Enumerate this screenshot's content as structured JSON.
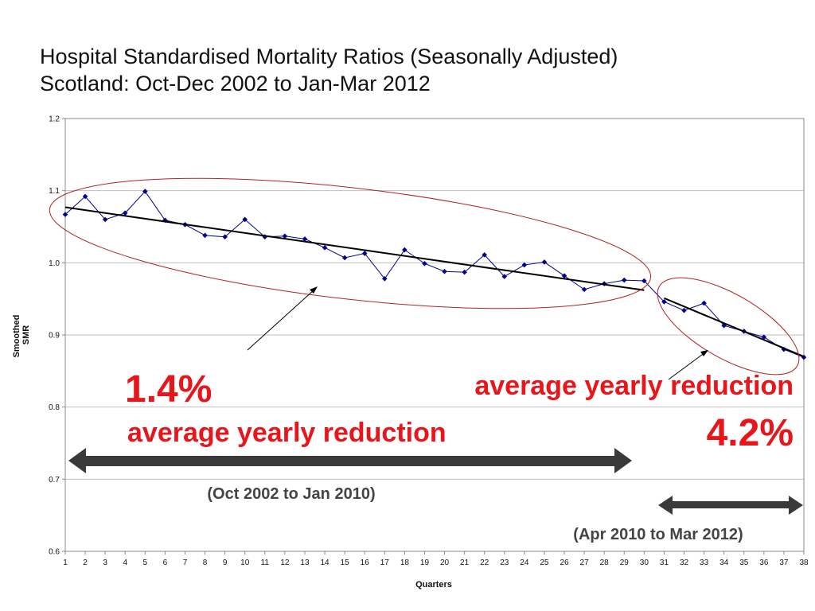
{
  "title": {
    "line1": "Hospital Standardised Mortality Ratios (Seasonally Adjusted)",
    "line2": "Scotland: Oct-Dec 2002 to Jan-Mar 2012"
  },
  "chart_data": {
    "type": "line",
    "title": "Hospital Standardised Mortality Ratios (Seasonally Adjusted) Scotland: Oct-Dec 2002 to Jan-Mar 2012",
    "xlabel": "Quarters",
    "ylabel_lines": [
      "Smoothed",
      "SMR"
    ],
    "x": [
      1,
      2,
      3,
      4,
      5,
      6,
      7,
      8,
      9,
      10,
      11,
      12,
      13,
      14,
      15,
      16,
      17,
      18,
      19,
      20,
      21,
      22,
      23,
      24,
      25,
      26,
      27,
      28,
      29,
      30,
      31,
      32,
      33,
      34,
      35,
      36,
      37,
      38
    ],
    "x_tick_labels": [
      "1",
      "2",
      "3",
      "4",
      "5",
      "6",
      "7",
      "8",
      "9",
      "10",
      "11",
      "12",
      "13",
      "14",
      "15",
      "16",
      "17",
      "18",
      "19",
      "20",
      "21",
      "22",
      "23",
      "24",
      "25",
      "26",
      "27",
      "28",
      "29",
      "30",
      "31",
      "32",
      "33",
      "34",
      "35",
      "36",
      "37",
      "38"
    ],
    "ylim": [
      0.6,
      1.2
    ],
    "y_ticks": [
      0.6,
      0.7,
      0.8,
      0.9,
      1.0,
      1.1,
      1.2
    ],
    "y_tick_labels": [
      "0.6",
      "0.7",
      "0.8",
      "0.9",
      "1.0",
      "1.1",
      "1.2"
    ],
    "grid": "horizontal",
    "series": [
      {
        "name": "Smoothed SMR",
        "color": "#00008b",
        "values": [
          1.067,
          1.092,
          1.06,
          1.069,
          1.099,
          1.059,
          1.053,
          1.038,
          1.036,
          1.06,
          1.036,
          1.037,
          1.033,
          1.021,
          1.007,
          1.013,
          0.978,
          1.018,
          0.999,
          0.988,
          0.987,
          1.011,
          0.981,
          0.997,
          1.001,
          0.982,
          0.963,
          0.971,
          0.976,
          0.975,
          0.946,
          0.934,
          0.944,
          0.913,
          0.905,
          0.897,
          0.88,
          0.869
        ]
      }
    ],
    "trendlines": [
      {
        "name": "Oct 2002 to Jan 2010 trend",
        "x": [
          1,
          30
        ],
        "y": [
          1.077,
          0.962
        ],
        "color": "#000000"
      },
      {
        "name": "Apr 2010 to Mar 2012 trend",
        "x": [
          31,
          38
        ],
        "y": [
          0.951,
          0.87
        ],
        "color": "#000000"
      }
    ],
    "annotations": {
      "left_percent": "1.4%",
      "left_caption": "average yearly reduction",
      "left_range": "(Oct 2002 to Jan 2010)",
      "right_percent": "4.2%",
      "right_caption": "average yearly reduction",
      "right_range": "(Apr 2010 to Mar 2012)"
    }
  },
  "colors": {
    "series": "#00008b",
    "trend": "#000000",
    "ellipse": "#b22222",
    "highlight_text": "#e8161b",
    "range_arrow": "#3a3a3a",
    "grid": "#bfbfbf"
  }
}
